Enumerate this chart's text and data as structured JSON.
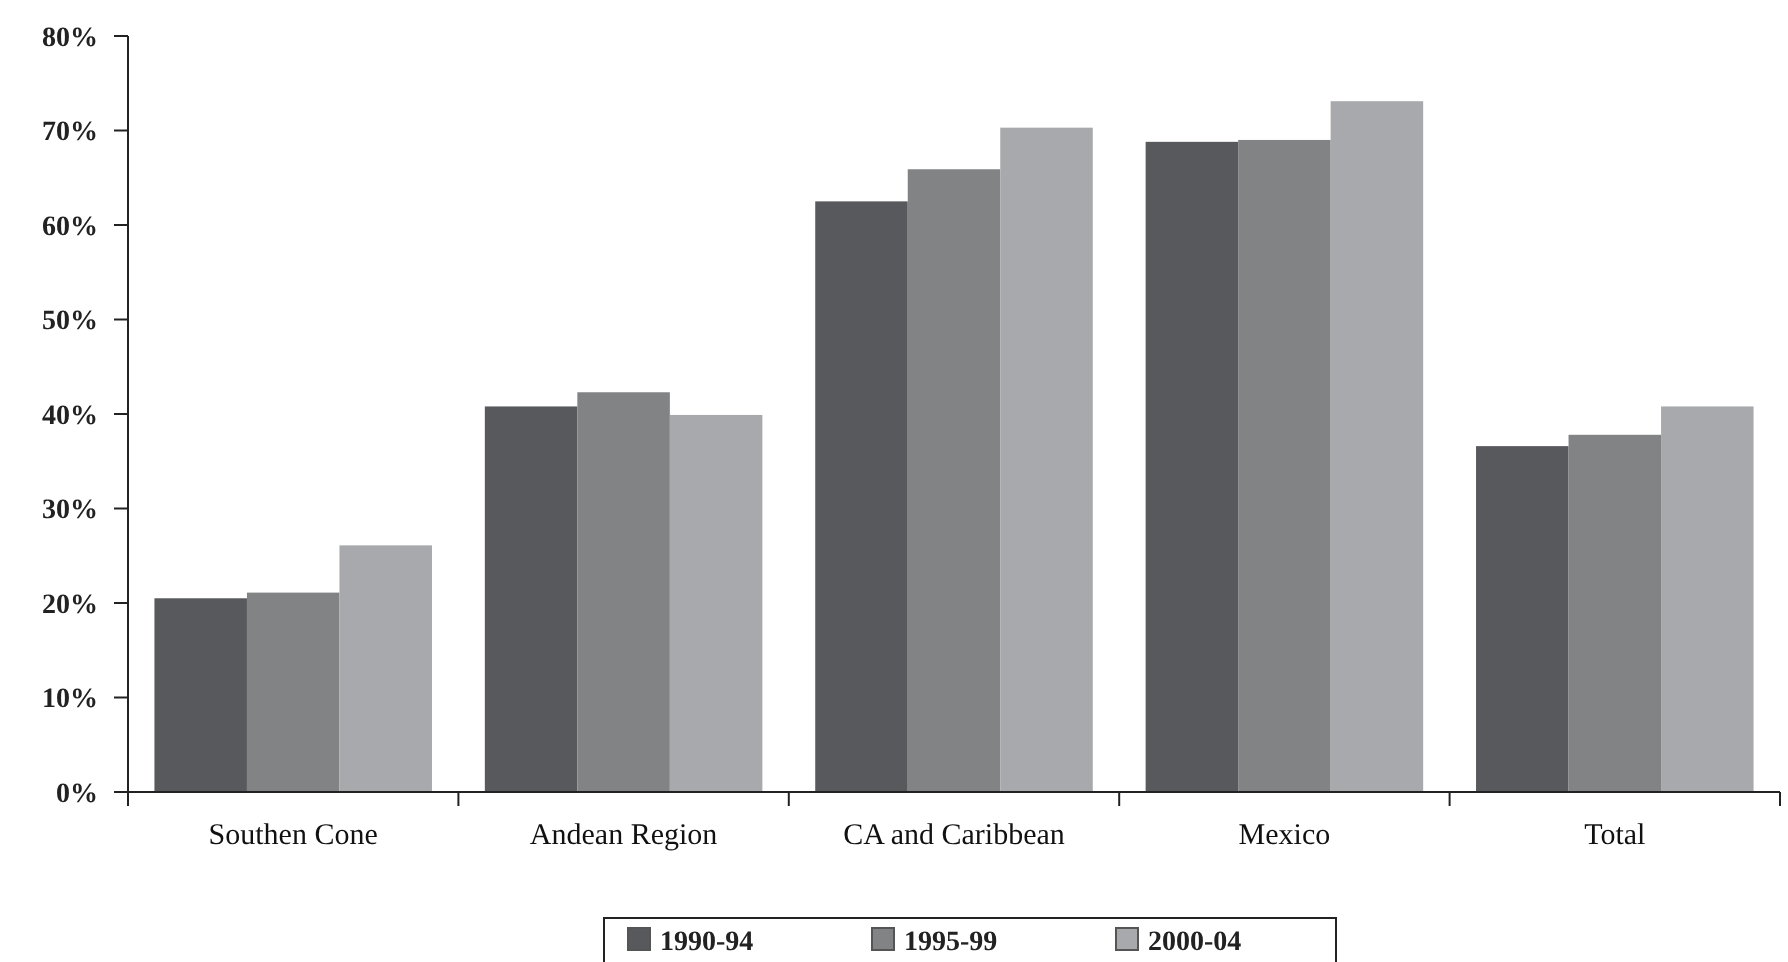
{
  "chart_data": {
    "type": "bar",
    "categories": [
      "Southen Cone",
      "Andean Region",
      "CA and Caribbean",
      "Mexico",
      "Total"
    ],
    "series": [
      {
        "name": "1990-94",
        "color": "#58595d",
        "values": [
          20.5,
          40.8,
          62.5,
          68.8,
          36.6
        ]
      },
      {
        "name": "1995-99",
        "color": "#828385",
        "values": [
          21.1,
          42.3,
          65.9,
          69.0,
          37.8
        ]
      },
      {
        "name": "2000-04",
        "color": "#a8a9ac",
        "values": [
          26.1,
          39.9,
          70.3,
          73.1,
          40.8
        ]
      }
    ],
    "ylim": [
      0,
      80
    ],
    "yticks": [
      {
        "value": 0,
        "label": "0%"
      },
      {
        "value": 10,
        "label": "10%"
      },
      {
        "value": 20,
        "label": "20%"
      },
      {
        "value": 30,
        "label": "30%"
      },
      {
        "value": 40,
        "label": "40%"
      },
      {
        "value": 50,
        "label": "50%"
      },
      {
        "value": 60,
        "label": "60%"
      },
      {
        "value": 70,
        "label": "70%"
      },
      {
        "value": 80,
        "label": "80%"
      }
    ],
    "grid": false,
    "legend": "bottom"
  }
}
